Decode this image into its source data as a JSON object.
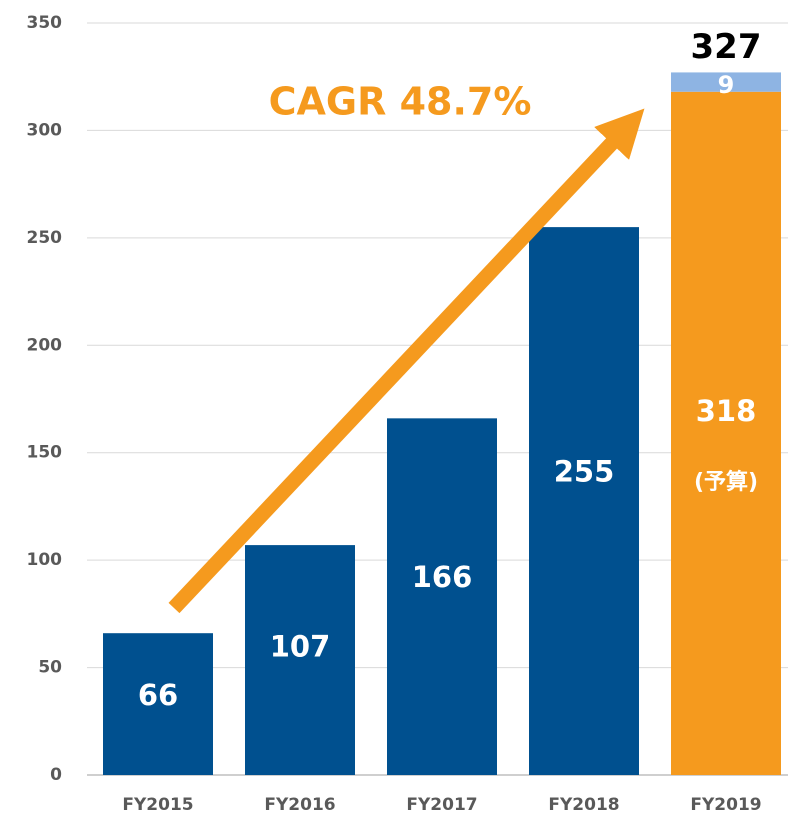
{
  "chart_data": {
    "type": "bar",
    "categories": [
      "FY2015",
      "FY2016",
      "FY2017",
      "FY2018",
      "FY2019"
    ],
    "series": [
      {
        "color": "#00508f",
        "values": [
          66,
          107,
          166,
          255,
          null
        ]
      },
      {
        "color": "#f59a1e",
        "values": [
          null,
          null,
          null,
          null,
          318
        ],
        "sublabel": "(予算)"
      },
      {
        "color": "#8eb4e3",
        "values": [
          null,
          null,
          null,
          null,
          9
        ]
      }
    ],
    "totals": [
      null,
      null,
      null,
      null,
      327
    ],
    "annotation": "CAGR 48.7%",
    "annotation_color": "#f59a1e",
    "stacked": true,
    "ylim": [
      0,
      350
    ],
    "yticks": [
      0,
      50,
      100,
      150,
      200,
      250,
      300,
      350
    ],
    "grid": true
  }
}
